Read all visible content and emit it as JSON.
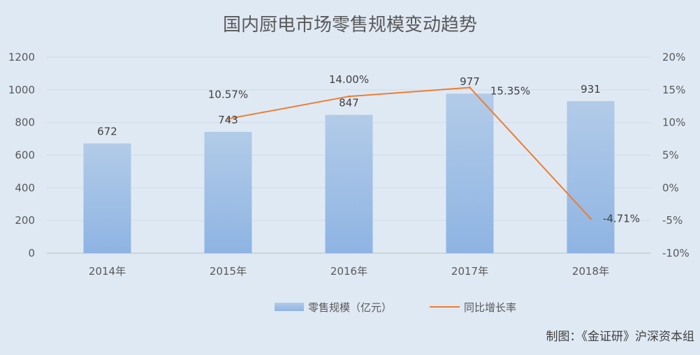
{
  "chart_data": {
    "type": "bar",
    "title": "国内厨电市场零售规模变动趋势",
    "categories": [
      "2014年",
      "2015年",
      "2016年",
      "2017年",
      "2018年"
    ],
    "series": [
      {
        "name": "零售规模（亿元）",
        "type": "bar",
        "axis": "left",
        "values": [
          672,
          743,
          847,
          977,
          931
        ],
        "labels": [
          "672",
          "743",
          "847",
          "977",
          "931"
        ],
        "color_top": "#b2cbe8",
        "color_bottom": "#8eb4e3"
      },
      {
        "name": "同比增长率",
        "type": "line",
        "axis": "right",
        "values": [
          null,
          10.57,
          14.0,
          15.35,
          -4.71
        ],
        "labels": [
          "",
          "10.57%",
          "14.00%",
          "15.35%",
          "-4.71%"
        ],
        "color": "#ed7d31"
      }
    ],
    "y_left": {
      "range": [
        0,
        1200
      ],
      "ticks": [
        0,
        200,
        400,
        600,
        800,
        1000,
        1200
      ],
      "tick_labels": [
        "0",
        "200",
        "400",
        "600",
        "800",
        "1000",
        "1200"
      ]
    },
    "y_right": {
      "range": [
        -10,
        20
      ],
      "ticks": [
        -10,
        -5,
        0,
        5,
        10,
        15,
        20
      ],
      "tick_labels": [
        "-10%",
        "-5%",
        "0%",
        "5%",
        "10%",
        "15%",
        "20%"
      ]
    },
    "grid": true,
    "legend": "bottom",
    "source": "制图：《金证研》沪深资本组"
  }
}
